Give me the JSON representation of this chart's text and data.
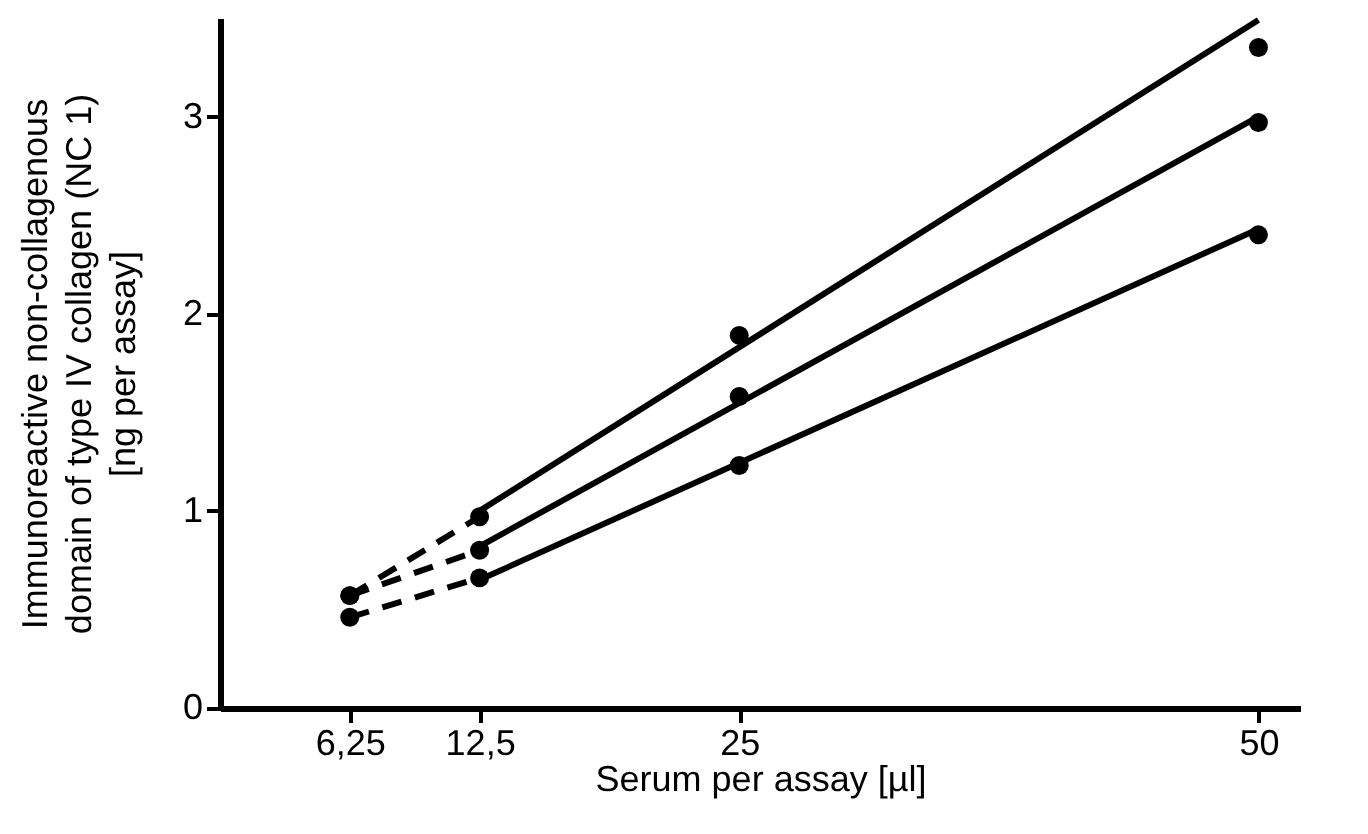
{
  "chart_data": {
    "type": "scatter",
    "xlabel": "Serum per assay [µl]",
    "ylabel": "Immunoreactive non-collagenous\ndomain of type IV collagen (NC 1)\n[ng per assay]",
    "xlim": [
      0,
      52
    ],
    "ylim": [
      0,
      3.5
    ],
    "xticks": [
      {
        "value": 6.25,
        "label": "6,25"
      },
      {
        "value": 12.5,
        "label": "12,5"
      },
      25,
      50
    ],
    "yticks": [
      0,
      1,
      2,
      3
    ],
    "grid": false,
    "series": [
      {
        "color": "#000000",
        "marker": "circle",
        "x": [
          6.25,
          12.5,
          25,
          50
        ],
        "values": [
          0.57,
          0.97,
          1.89,
          3.35
        ]
      },
      {
        "color": "#000000",
        "marker": "circle",
        "x": [
          6.25,
          12.5,
          25,
          50
        ],
        "values": [
          0.57,
          0.8,
          1.58,
          2.97
        ]
      },
      {
        "color": "#000000",
        "marker": "circle",
        "x": [
          6.25,
          12.5,
          25,
          50
        ],
        "values": [
          0.46,
          0.66,
          1.23,
          2.4
        ]
      },
      {
        "type": "line",
        "color": "#000000",
        "line_style": "dashed",
        "x": [
          6.25,
          12.5
        ],
        "values": [
          0.57,
          0.97
        ]
      },
      {
        "type": "line",
        "color": "#000000",
        "line_style": "dashed",
        "x": [
          6.25,
          12.5
        ],
        "values": [
          0.57,
          0.8
        ]
      },
      {
        "type": "line",
        "color": "#000000",
        "line_style": "dashed",
        "x": [
          6.25,
          12.5
        ],
        "values": [
          0.46,
          0.66
        ]
      },
      {
        "type": "line",
        "color": "#000000",
        "line_style": "solid",
        "x": [
          12.5,
          50
        ],
        "values": [
          1.0,
          3.49
        ]
      },
      {
        "type": "line",
        "color": "#000000",
        "line_style": "solid",
        "x": [
          12.5,
          50
        ],
        "values": [
          0.82,
          3.0
        ]
      },
      {
        "type": "line",
        "color": "#000000",
        "line_style": "solid",
        "x": [
          12.5,
          50
        ],
        "values": [
          0.65,
          2.43
        ]
      }
    ]
  }
}
